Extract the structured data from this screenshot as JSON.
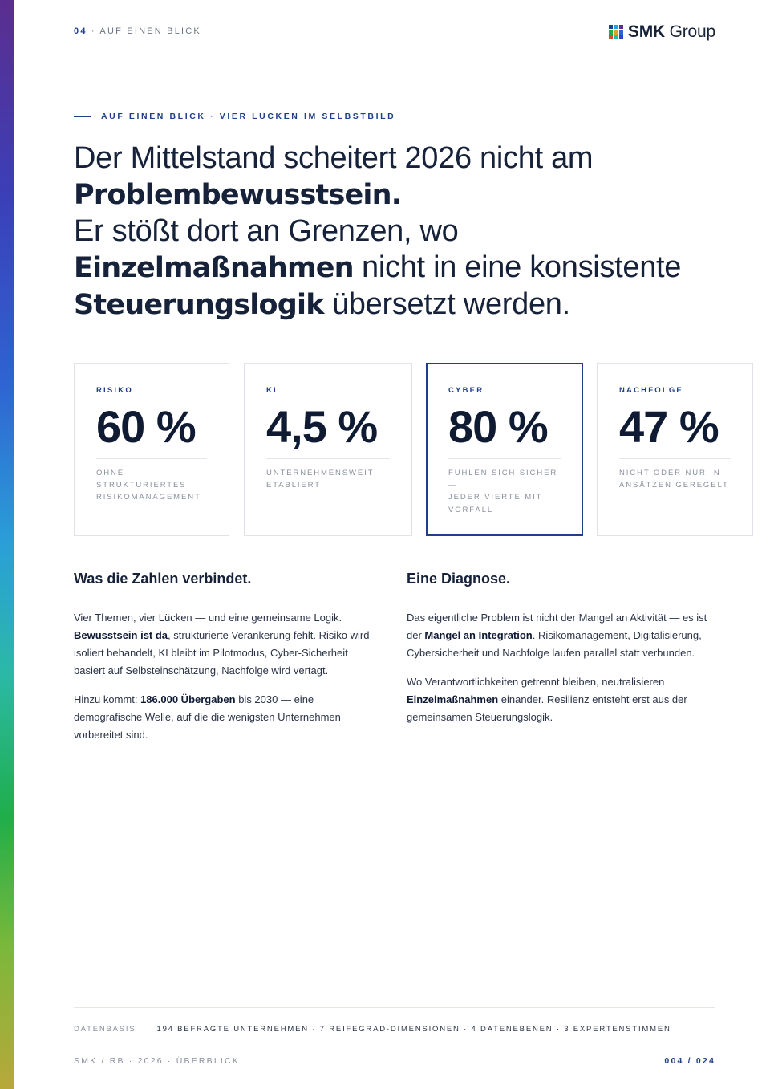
{
  "header": {
    "number": "04",
    "separator": " · ",
    "section": "AUF EINEN BLICK"
  },
  "logo": {
    "brand": "SMK",
    "name": "Group",
    "colors": [
      "#1f3f8a",
      "#2a9fd8",
      "#5b2e8f",
      "#1fae4a",
      "#e0a020",
      "#2f63d2",
      "#d9473a",
      "#2bb9a6",
      "#3b3fb8"
    ]
  },
  "kicker": "AUF EINEN BLICK · VIER LÜCKEN IM SELBSTBILD",
  "headline": {
    "l1": "Der Mittelstand scheitert 2026 nicht am",
    "l2_bold": "Problembewusstsein.",
    "l3": "Er stößt dort an Grenzen, wo",
    "l4_bold": "Einzelmaßnahmen",
    "l4_rest": " nicht in eine konsistente",
    "l5_bold": "Steuerungslogik",
    "l5_rest": " übersetzt werden."
  },
  "cards": [
    {
      "label": "RISIKO",
      "value": "60 %",
      "desc": "OHNE\nSTRUKTURIERTES\nRISIKOMANAGEMENT"
    },
    {
      "label": "KI",
      "value": "4,5 %",
      "desc": "UNTERNEHMENSWEIT\nETABLIERT"
    },
    {
      "label": "CYBER",
      "value": "80 %",
      "desc": "FÜHLEN SICH SICHER\n—\nJEDER VIERTE MIT\nVORFALL"
    },
    {
      "label": "NACHFOLGE",
      "value": "47 %",
      "desc": "NICHT ODER NUR IN\nANSÄTZEN GEREGELT"
    }
  ],
  "left": {
    "title": "Was die Zahlen verbindet.",
    "p1_a": "Vier Themen, vier Lücken — und eine gemeinsame Logik. ",
    "p1_b": "Bewusstsein ist da",
    "p1_c": ", strukturierte Verankerung fehlt. Risiko wird isoliert behandelt, KI bleibt im Pilotmodus, Cyber-Sicherheit basiert auf Selbsteinschätzung, Nachfolge wird vertagt.",
    "p2_a": "Hinzu kommt: ",
    "p2_b": "186.000 Übergaben",
    "p2_c": " bis 2030 — eine demografische Welle, auf die die wenigsten Unternehmen vorbereitet sind."
  },
  "right": {
    "title": "Eine Diagnose.",
    "p1_a": "Das eigentliche Problem ist nicht der Mangel an Aktivität — es ist der ",
    "p1_b": "Mangel an Integration",
    "p1_c": ". Risikomanagement, Digitalisierung, Cybersicherheit und Nachfolge laufen parallel statt verbunden.",
    "p2_a": "Wo Verantwortlichkeiten getrennt bleiben, neutralisieren ",
    "p2_b": "Einzelmaßnahmen",
    "p2_c": " einander. Resilienz entsteht erst aus der gemeinsamen Steuerungslogik."
  },
  "footer": {
    "data_label": "DATENBASIS",
    "data_text": "194 BEFRAGTE UNTERNEHMEN · 7 REIFEGRAD-DIMENSIONEN · 4 DATENEBENEN · 3 EXPERTENSTIMMEN",
    "doc": "SMK / RB · 2026 · ÜBERBLICK",
    "page": "004 / 024"
  },
  "colors": {
    "accent": "#1f3f8a",
    "text": "#16213a",
    "muted": "#8a909c"
  }
}
